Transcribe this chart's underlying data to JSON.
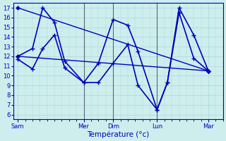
{
  "xlabel": "Température (°c)",
  "ylim": [
    5.5,
    17.5
  ],
  "yticks": [
    6,
    7,
    8,
    9,
    10,
    11,
    12,
    13,
    14,
    15,
    16,
    17
  ],
  "xtick_labels": [
    "Sam",
    "Mer",
    "Dim",
    "Lun",
    "Mar"
  ],
  "xtick_positions": [
    0,
    4.5,
    6.5,
    9.5,
    13
  ],
  "xlim": [
    -0.3,
    14.0
  ],
  "vlines": [
    4.5,
    6.5,
    9.5
  ],
  "background_color": "#cdeeed",
  "grid_color": "#a8d8d8",
  "line_color": "#0000bb",
  "series": [
    {
      "x": [
        0,
        13
      ],
      "y": [
        17,
        10.5
      ],
      "lw": 1.0,
      "marker": "D",
      "ms": 2.5
    },
    {
      "x": [
        0,
        13
      ],
      "y": [
        12,
        10.5
      ],
      "lw": 1.0,
      "marker": "D",
      "ms": 2.5
    },
    {
      "x": [
        0,
        1.0,
        1.7,
        2.5,
        3.2,
        4.5,
        5.5,
        6.5,
        7.5,
        8.2,
        9.5,
        10.2,
        11.0,
        12.0,
        13.0
      ],
      "y": [
        12,
        12.8,
        17.0,
        15.5,
        11.5,
        9.3,
        11.3,
        15.8,
        15.2,
        12.5,
        6.5,
        9.3,
        17.0,
        14.2,
        10.5
      ],
      "lw": 1.2,
      "marker": "+",
      "ms": 5
    },
    {
      "x": [
        0,
        1.0,
        1.7,
        2.5,
        3.2,
        4.5,
        5.5,
        6.5,
        7.5,
        8.2,
        9.5,
        10.2,
        11.0,
        12.0,
        13.0
      ],
      "y": [
        11.7,
        10.7,
        12.8,
        14.2,
        10.8,
        9.3,
        9.3,
        11.3,
        13.2,
        9.0,
        6.5,
        9.3,
        16.5,
        11.8,
        10.5
      ],
      "lw": 1.2,
      "marker": "+",
      "ms": 5
    }
  ]
}
